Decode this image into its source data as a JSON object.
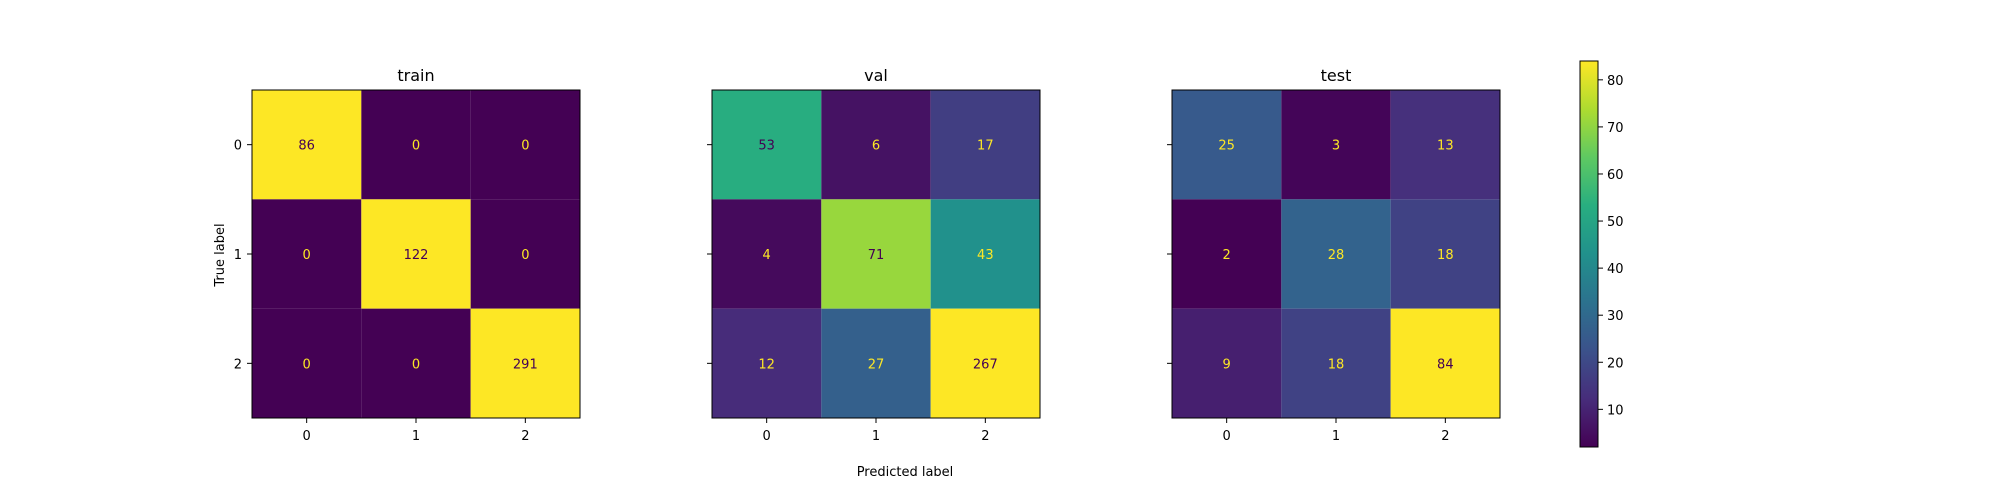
{
  "chart_data": {
    "type": "heatmap",
    "xlabel": "Predicted label",
    "ylabel": "True label",
    "x_tick_labels": [
      "0",
      "1",
      "2"
    ],
    "y_tick_labels": [
      "0",
      "1",
      "2"
    ],
    "colormap": "viridis",
    "colorbar": {
      "range": [
        2,
        84
      ],
      "ticks": [
        10,
        20,
        30,
        40,
        50,
        60,
        70,
        80
      ]
    },
    "panels": [
      {
        "title": "train",
        "matrix": [
          [
            86,
            0,
            0
          ],
          [
            0,
            122,
            0
          ],
          [
            0,
            0,
            291
          ]
        ]
      },
      {
        "title": "val",
        "matrix": [
          [
            53,
            6,
            17
          ],
          [
            4,
            71,
            43
          ],
          [
            12,
            27,
            267
          ]
        ]
      },
      {
        "title": "test",
        "matrix": [
          [
            25,
            3,
            13
          ],
          [
            2,
            28,
            18
          ],
          [
            9,
            18,
            84
          ]
        ]
      }
    ],
    "text_colors": {
      "on_dark": "#fde725",
      "on_light": "#440154"
    }
  }
}
